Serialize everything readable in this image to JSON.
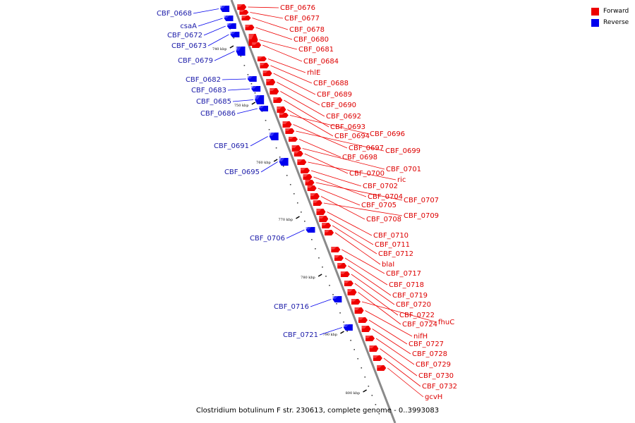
{
  "caption": "Clostridium botulinum F str. 230613, complete genome - 0..3993083",
  "legend": [
    {
      "label": "Forward",
      "color": "#ee0000"
    },
    {
      "label": "Reverse",
      "color": "#0000ee"
    }
  ],
  "ticks": [
    "740 kbp",
    "750 kbp",
    "760 kbp",
    "770 kbp",
    "780 kbp",
    "790 kbp",
    "800 kbp"
  ],
  "forward_genes": [
    "CBF_0676",
    "CBF_0677",
    "CBF_0678",
    "CBF_0680",
    "CBF_0681",
    "CBF_0684",
    "rhlE",
    "CBF_0688",
    "CBF_0689",
    "CBF_0690",
    "CBF_0692",
    "CBF_0693",
    "CBF_0694",
    "CBF_0696",
    "CBF_0697",
    "CBF_0699",
    "CBF_0698",
    "CBF_0701",
    "CBF_0700",
    "ric",
    "CBF_0702",
    "CBF_0704",
    "CBF_0707",
    "CBF_0705",
    "CBF_0708",
    "CBF_0709",
    "CBF_0710",
    "CBF_0711",
    "CBF_0712",
    "blaI",
    "CBF_0717",
    "CBF_0718",
    "CBF_0719",
    "CBF_0720",
    "CBF_0722",
    "CBF_0724",
    "fhuC",
    "nifH",
    "CBF_0727",
    "CBF_0728",
    "CBF_0729",
    "CBF_0730",
    "CBF_0732",
    "gcvH"
  ],
  "reverse_genes": [
    "CBF_0668",
    "csaA",
    "CBF_0672",
    "CBF_0673",
    "CBF_0679",
    "CBF_0682",
    "CBF_0683",
    "CBF_0685",
    "CBF_0686",
    "CBF_0691",
    "CBF_0695",
    "CBF_0706",
    "CBF_0716",
    "CBF_0721"
  ]
}
